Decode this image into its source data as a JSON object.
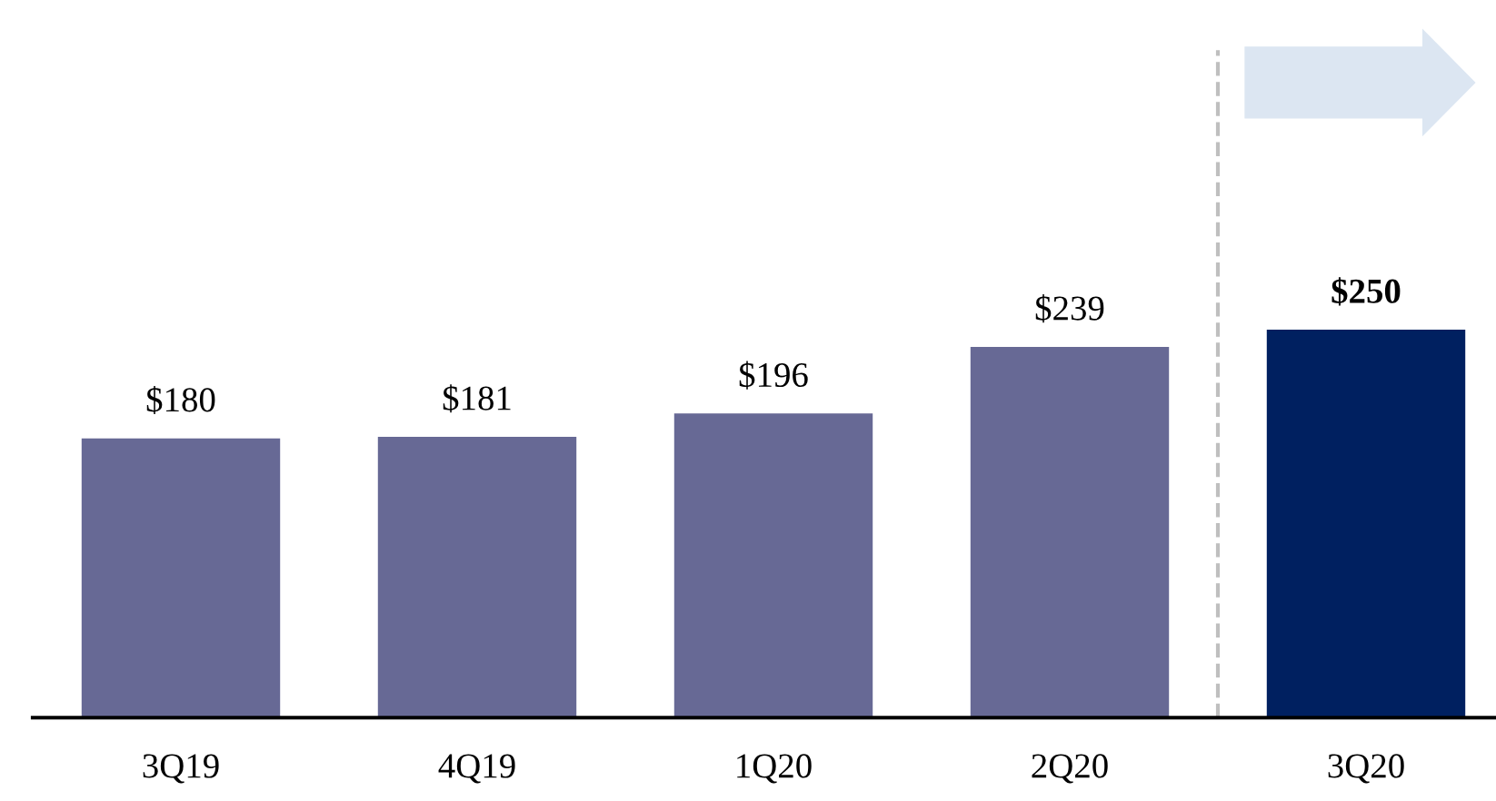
{
  "chart_data": {
    "type": "bar",
    "categories": [
      "3Q19",
      "4Q19",
      "1Q20",
      "2Q20",
      "3Q20"
    ],
    "values": [
      180,
      181,
      196,
      239,
      250
    ],
    "colors": [
      "#676995",
      "#676995",
      "#676995",
      "#676995",
      "#002060"
    ],
    "value_labels": [
      "$180",
      "$181",
      "$196",
      "$239",
      "$250"
    ],
    "grid": false,
    "legend": false
  }
}
